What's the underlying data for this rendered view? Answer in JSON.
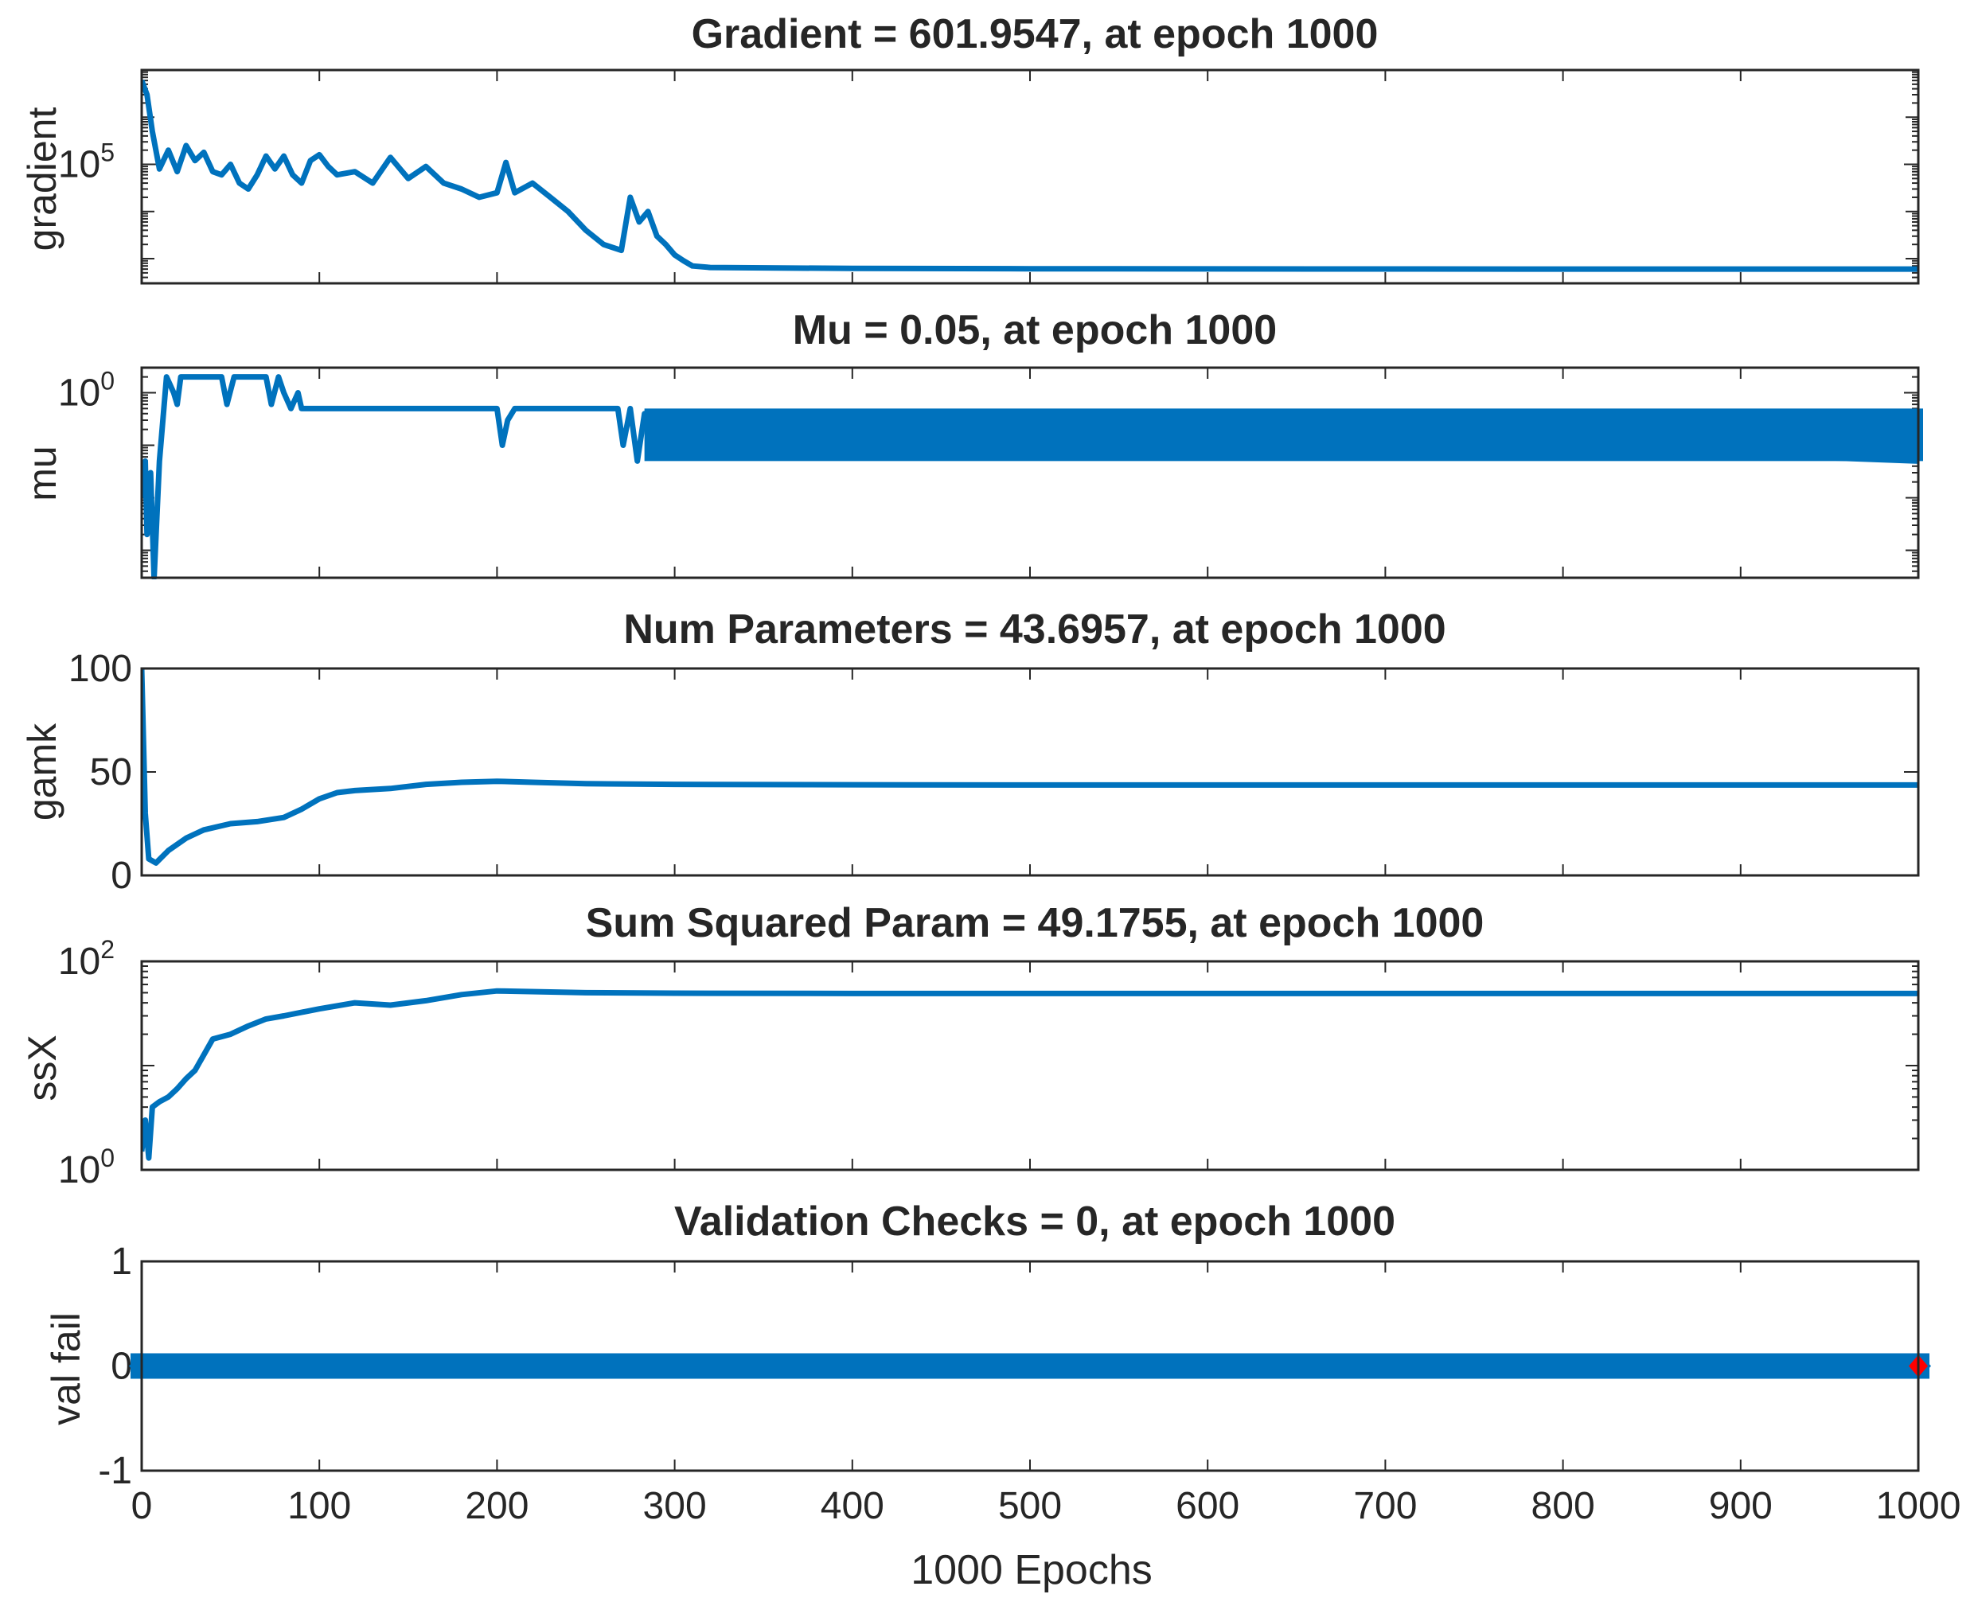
{
  "figure": {
    "xlabel": "1000 Epochs",
    "x_ticks": [
      "0",
      "100",
      "200",
      "300",
      "400",
      "500",
      "600",
      "700",
      "800",
      "900",
      "1000"
    ],
    "line_color": "#0072BD",
    "marker_color": "#FF0000",
    "axis_color": "#262626"
  },
  "chart_data": [
    {
      "type": "line",
      "title": "Gradient = 601.9547, at epoch 1000",
      "ylabel": "gradient",
      "yscale": "log",
      "ylim": [
        300,
        10000000
      ],
      "y_ticks": [
        {
          "value": 100000,
          "base": "10",
          "exp": "5"
        }
      ],
      "xlim": [
        0,
        1000
      ],
      "series": [
        {
          "name": "gradient",
          "x": [
            0,
            3,
            6,
            10,
            15,
            20,
            25,
            30,
            35,
            40,
            45,
            50,
            55,
            60,
            65,
            70,
            75,
            80,
            85,
            90,
            95,
            100,
            105,
            110,
            120,
            130,
            140,
            150,
            160,
            170,
            180,
            190,
            200,
            205,
            210,
            220,
            230,
            240,
            250,
            260,
            270,
            275,
            280,
            285,
            290,
            295,
            300,
            305,
            310,
            320,
            400,
            500,
            600,
            700,
            800,
            900,
            1000
          ],
          "y": [
            6000000,
            3000000,
            500000,
            80000,
            200000,
            70000,
            250000,
            120000,
            180000,
            70000,
            60000,
            100000,
            40000,
            30000,
            60000,
            150000,
            80000,
            150000,
            60000,
            40000,
            120000,
            160000,
            90000,
            60000,
            70000,
            40000,
            140000,
            50000,
            90000,
            40000,
            30000,
            20000,
            25000,
            110000,
            25000,
            40000,
            20000,
            10000,
            4000,
            2000,
            1500,
            20000,
            6000,
            10000,
            3000,
            2000,
            1200,
            900,
            700,
            650,
            620,
            610,
            605,
            603,
            602,
            602,
            601.9547
          ]
        }
      ]
    },
    {
      "type": "line",
      "title": "Mu = 0.05, at epoch 1000",
      "ylabel": "mu",
      "yscale": "log",
      "ylim": [
        0.0003,
        3
      ],
      "y_ticks": [
        {
          "value": 1,
          "base": "10",
          "exp": "0"
        }
      ],
      "xlim": [
        0,
        1000
      ],
      "series": [
        {
          "name": "mu",
          "x": [
            0,
            2,
            3,
            5,
            7,
            10,
            14,
            18,
            20,
            22,
            25,
            45,
            48,
            52,
            55,
            70,
            73,
            77,
            80,
            84,
            88,
            90,
            200,
            203,
            206,
            210,
            268,
            271,
            275,
            279,
            283,
            1000
          ],
          "y": [
            0.01,
            0.05,
            0.002,
            0.03,
            0.0003,
            0.05,
            2,
            1,
            0.6,
            2,
            2,
            2,
            0.6,
            2,
            2,
            2,
            0.6,
            2,
            1,
            0.5,
            1,
            0.5,
            0.5,
            0.1,
            0.3,
            0.5,
            0.5,
            0.1,
            0.5,
            0.05,
            0.4,
            0.05
          ]
        }
      ],
      "band": {
        "x_start": 283,
        "x_end": 1000,
        "y_low": 0.05,
        "y_high": 0.5
      }
    },
    {
      "type": "line",
      "title": "Num Parameters = 43.6957, at epoch 1000",
      "ylabel": "gamk",
      "yscale": "linear",
      "ylim": [
        0,
        100
      ],
      "y_ticks": [
        {
          "value": 0,
          "label": "0"
        },
        {
          "value": 50,
          "label": "50"
        },
        {
          "value": 100,
          "label": "100"
        }
      ],
      "xlim": [
        0,
        1000
      ],
      "series": [
        {
          "name": "gamk",
          "x": [
            0,
            2,
            4,
            8,
            15,
            25,
            35,
            50,
            65,
            80,
            90,
            100,
            110,
            120,
            140,
            160,
            180,
            200,
            220,
            250,
            300,
            400,
            500,
            600,
            700,
            800,
            900,
            1000
          ],
          "y": [
            100,
            30,
            8,
            6,
            12,
            18,
            22,
            25,
            26,
            28,
            32,
            37,
            40,
            41,
            42,
            44,
            45,
            45.5,
            45,
            44.3,
            44,
            43.8,
            43.7,
            43.7,
            43.7,
            43.7,
            43.7,
            43.6957
          ]
        }
      ]
    },
    {
      "type": "line",
      "title": "Sum Squared Param = 49.1755, at epoch 1000",
      "ylabel": "ssX",
      "yscale": "log",
      "ylim": [
        1,
        100
      ],
      "y_ticks": [
        {
          "value": 1,
          "base": "10",
          "exp": "0"
        },
        {
          "value": 100,
          "base": "10",
          "exp": "2"
        }
      ],
      "xlim": [
        0,
        1000
      ],
      "series": [
        {
          "name": "ssX",
          "x": [
            0,
            2,
            4,
            6,
            10,
            15,
            20,
            25,
            30,
            40,
            50,
            60,
            70,
            80,
            100,
            120,
            140,
            160,
            180,
            200,
            250,
            300,
            400,
            500,
            600,
            700,
            800,
            900,
            1000
          ],
          "y": [
            1.5,
            3,
            1.3,
            4,
            4.5,
            5,
            6,
            7.5,
            9,
            18,
            20,
            24,
            28,
            30,
            35,
            40,
            38,
            42,
            48,
            52,
            50,
            49.5,
            49.2,
            49.2,
            49.2,
            49.2,
            49.2,
            49.2,
            49.1755
          ]
        }
      ]
    },
    {
      "type": "line",
      "title": "Validation Checks = 0, at epoch 1000",
      "ylabel": "val fail",
      "yscale": "linear",
      "ylim": [
        -1,
        1
      ],
      "y_ticks": [
        {
          "value": -1,
          "label": "-1"
        },
        {
          "value": 0,
          "label": "0"
        },
        {
          "value": 1,
          "label": "1"
        }
      ],
      "xlim": [
        0,
        1000
      ],
      "series": [
        {
          "name": "val fail",
          "x": [
            0,
            1000
          ],
          "y": [
            0,
            0
          ],
          "marker": "diamond-filled"
        }
      ],
      "highlight": {
        "x": 1000,
        "y": 0,
        "marker": "diamond",
        "color": "#FF0000"
      }
    }
  ]
}
